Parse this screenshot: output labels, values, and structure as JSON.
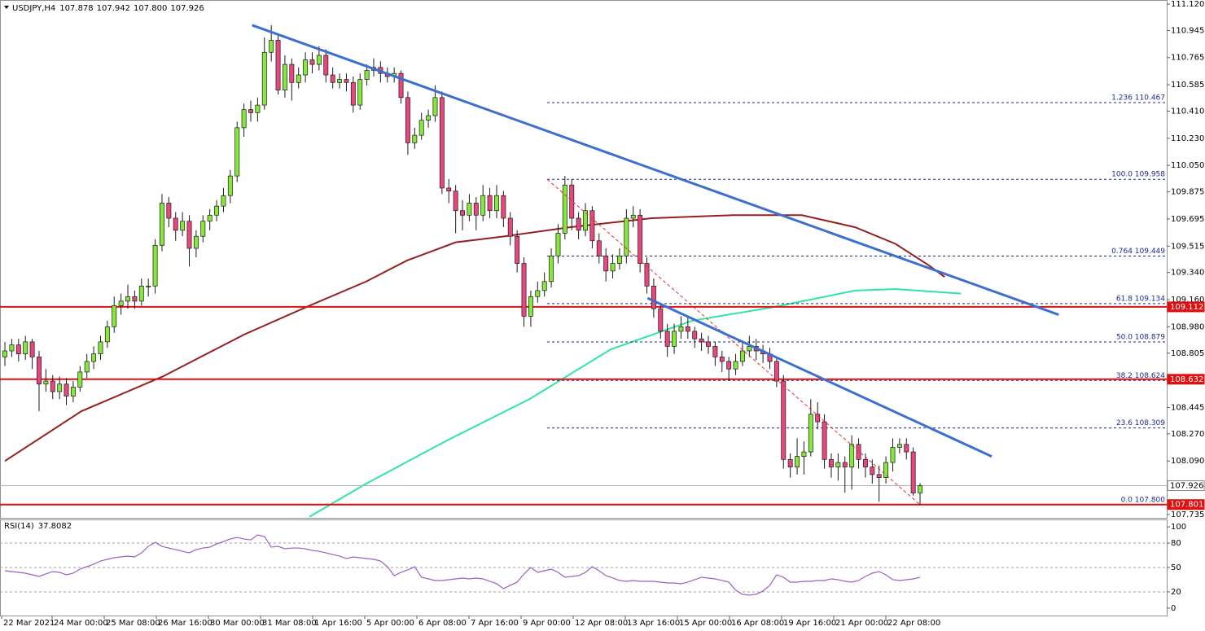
{
  "chart_data": {
    "type": "candlestick",
    "title": "USDJPY,H4",
    "title_values": [
      "107.878",
      "107.942",
      "107.800",
      "107.926"
    ],
    "xlim": [
      -0.72,
      170.12
    ],
    "ylim": [
      107.713,
      111.147
    ],
    "yticks": [
      {
        "value": 111.12,
        "label": "111.120"
      },
      110.945,
      110.765,
      110.585,
      {
        "value": 110.41,
        "label": "110.410"
      },
      {
        "value": 110.23,
        "label": "110.230"
      },
      {
        "value": 110.05,
        "label": "110.050"
      },
      109.875,
      109.695,
      109.515,
      {
        "value": 109.34,
        "label": "109.340"
      },
      {
        "value": 109.16,
        "label": "109.160"
      },
      {
        "value": 108.98,
        "label": "108.980"
      },
      108.805,
      108.625,
      108.445,
      {
        "value": 108.27,
        "label": "108.270"
      },
      {
        "value": 108.09,
        "label": "108.090"
      },
      {
        "value": 107.91,
        "label": "107.910"
      },
      107.735
    ],
    "x_labels": [
      "22 Mar 2021",
      "24 Mar 00:00",
      "25 Mar 08:00",
      "26 Mar 16:00",
      "30 Mar 00:00",
      "31 Mar 08:00",
      "1 Apr 16:00",
      "5 Apr 00:00",
      "6 Apr 08:00",
      "7 Apr 16:00",
      "9 Apr 00:00",
      "12 Apr 08:00",
      "13 Apr 16:00",
      "15 Apr 00:00",
      "16 Apr 08:00",
      "19 Apr 16:00",
      "21 Apr 00:00",
      "22 Apr 08:00"
    ],
    "bull_color": "#86e83a",
    "bear_color": "#e8467c",
    "ohlc": [
      [
        108.78,
        108.88,
        108.72,
        108.82
      ],
      [
        108.82,
        108.9,
        108.78,
        108.86
      ],
      [
        108.86,
        108.9,
        108.75,
        108.8
      ],
      [
        108.8,
        108.92,
        108.76,
        108.88
      ],
      [
        108.88,
        108.9,
        108.7,
        108.78
      ],
      [
        108.78,
        108.82,
        108.42,
        108.6
      ],
      [
        108.6,
        108.7,
        108.55,
        108.62
      ],
      [
        108.62,
        108.66,
        108.5,
        108.55
      ],
      [
        108.55,
        108.65,
        108.5,
        108.6
      ],
      [
        108.6,
        108.64,
        108.46,
        108.52
      ],
      [
        108.52,
        108.62,
        108.48,
        108.58
      ],
      [
        108.58,
        108.72,
        108.55,
        108.68
      ],
      [
        108.68,
        108.8,
        108.64,
        108.75
      ],
      [
        108.75,
        108.85,
        108.7,
        108.8
      ],
      [
        108.8,
        108.92,
        108.76,
        108.88
      ],
      [
        108.88,
        109.02,
        108.84,
        108.98
      ],
      [
        108.98,
        109.18,
        108.94,
        109.12
      ],
      [
        109.12,
        109.2,
        109.06,
        109.15
      ],
      [
        109.15,
        109.26,
        109.1,
        109.18
      ],
      [
        109.18,
        109.22,
        109.1,
        109.15
      ],
      [
        109.15,
        109.3,
        109.12,
        109.25
      ],
      [
        109.25,
        109.3,
        109.18,
        109.25
      ],
      [
        109.25,
        109.56,
        109.2,
        109.52
      ],
      [
        109.52,
        109.86,
        109.48,
        109.8
      ],
      [
        109.8,
        109.84,
        109.64,
        109.7
      ],
      [
        109.7,
        109.74,
        109.55,
        109.62
      ],
      [
        109.62,
        109.74,
        109.58,
        109.68
      ],
      [
        109.68,
        109.72,
        109.38,
        109.5
      ],
      [
        109.5,
        109.62,
        109.44,
        109.58
      ],
      [
        109.58,
        109.72,
        109.54,
        109.68
      ],
      [
        109.68,
        109.76,
        109.62,
        109.72
      ],
      [
        109.72,
        109.82,
        109.68,
        109.78
      ],
      [
        109.78,
        109.9,
        109.74,
        109.85
      ],
      [
        109.85,
        110.02,
        109.8,
        109.98
      ],
      [
        109.98,
        110.34,
        109.94,
        110.3
      ],
      [
        110.3,
        110.46,
        110.24,
        110.42
      ],
      [
        110.42,
        110.48,
        110.34,
        110.4
      ],
      [
        110.4,
        110.5,
        110.34,
        110.45
      ],
      [
        110.45,
        110.9,
        110.42,
        110.8
      ],
      [
        110.8,
        110.98,
        110.74,
        110.88
      ],
      [
        110.88,
        110.92,
        110.52,
        110.55
      ],
      [
        110.55,
        110.78,
        110.5,
        110.72
      ],
      [
        110.72,
        110.76,
        110.48,
        110.6
      ],
      [
        110.6,
        110.7,
        110.56,
        110.65
      ],
      [
        110.65,
        110.8,
        110.6,
        110.75
      ],
      [
        110.75,
        110.8,
        110.66,
        110.72
      ],
      [
        110.72,
        110.84,
        110.68,
        110.78
      ],
      [
        110.78,
        110.82,
        110.6,
        110.65
      ],
      [
        110.65,
        110.7,
        110.56,
        110.6
      ],
      [
        110.6,
        110.66,
        110.56,
        110.62
      ],
      [
        110.62,
        110.66,
        110.54,
        110.6
      ],
      [
        110.6,
        110.64,
        110.4,
        110.45
      ],
      [
        110.45,
        110.66,
        110.42,
        110.62
      ],
      [
        110.62,
        110.72,
        110.58,
        110.68
      ],
      [
        110.68,
        110.76,
        110.64,
        110.7
      ],
      [
        110.7,
        110.74,
        110.6,
        110.66
      ],
      [
        110.66,
        110.7,
        110.6,
        110.64
      ],
      [
        110.64,
        110.7,
        110.6,
        110.66
      ],
      [
        110.66,
        110.68,
        110.46,
        110.5
      ],
      [
        110.5,
        110.54,
        110.12,
        110.2
      ],
      [
        110.2,
        110.3,
        110.16,
        110.25
      ],
      [
        110.25,
        110.4,
        110.22,
        110.35
      ],
      [
        110.35,
        110.42,
        110.3,
        110.38
      ],
      [
        110.38,
        110.58,
        110.34,
        110.5
      ],
      [
        110.5,
        110.54,
        109.86,
        109.9
      ],
      [
        109.9,
        109.96,
        109.8,
        109.88
      ],
      [
        109.88,
        109.92,
        109.6,
        109.75
      ],
      [
        109.75,
        109.82,
        109.62,
        109.72
      ],
      [
        109.72,
        109.86,
        109.68,
        109.8
      ],
      [
        109.8,
        109.84,
        109.62,
        109.72
      ],
      [
        109.72,
        109.92,
        109.68,
        109.85
      ],
      [
        109.85,
        109.9,
        109.7,
        109.75
      ],
      [
        109.75,
        109.92,
        109.7,
        109.85
      ],
      [
        109.85,
        109.88,
        109.64,
        109.7
      ],
      [
        109.7,
        109.74,
        109.52,
        109.58
      ],
      [
        109.58,
        109.62,
        109.34,
        109.4
      ],
      [
        109.4,
        109.44,
        108.98,
        109.05
      ],
      [
        109.05,
        109.22,
        108.98,
        109.18
      ],
      [
        109.18,
        109.28,
        109.14,
        109.22
      ],
      [
        109.22,
        109.34,
        109.18,
        109.28
      ],
      [
        109.28,
        109.5,
        109.24,
        109.45
      ],
      [
        109.45,
        109.66,
        109.4,
        109.6
      ],
      [
        109.6,
        109.98,
        109.56,
        109.92
      ],
      [
        109.92,
        109.96,
        109.62,
        109.7
      ],
      [
        109.7,
        109.74,
        109.56,
        109.62
      ],
      [
        109.62,
        109.8,
        109.58,
        109.75
      ],
      [
        109.75,
        109.78,
        109.5,
        109.55
      ],
      [
        109.55,
        109.6,
        109.4,
        109.45
      ],
      [
        109.45,
        109.5,
        109.28,
        109.35
      ],
      [
        109.35,
        109.46,
        109.3,
        109.4
      ],
      [
        109.4,
        109.5,
        109.36,
        109.45
      ],
      [
        109.45,
        109.76,
        109.4,
        109.7
      ],
      [
        109.7,
        109.78,
        109.64,
        109.72
      ],
      [
        109.72,
        109.76,
        109.34,
        109.4
      ],
      [
        109.4,
        109.44,
        109.2,
        109.25
      ],
      [
        109.25,
        109.3,
        109.04,
        109.1
      ],
      [
        109.1,
        109.14,
        108.9,
        108.95
      ],
      [
        108.95,
        109.0,
        108.78,
        108.85
      ],
      [
        108.85,
        109.0,
        108.8,
        108.95
      ],
      [
        108.95,
        109.05,
        108.9,
        108.98
      ],
      [
        108.98,
        109.04,
        108.9,
        108.95
      ],
      [
        108.95,
        108.98,
        108.84,
        108.9
      ],
      [
        108.9,
        108.94,
        108.82,
        108.88
      ],
      [
        108.88,
        108.92,
        108.8,
        108.85
      ],
      [
        108.85,
        108.88,
        108.72,
        108.78
      ],
      [
        108.78,
        108.82,
        108.68,
        108.75
      ],
      [
        108.75,
        108.78,
        108.62,
        108.7
      ],
      [
        108.7,
        108.8,
        108.66,
        108.75
      ],
      [
        108.75,
        108.88,
        108.72,
        108.82
      ],
      [
        108.82,
        108.92,
        108.78,
        108.85
      ],
      [
        108.85,
        108.9,
        108.76,
        108.82
      ],
      [
        108.82,
        108.86,
        108.74,
        108.8
      ],
      [
        108.8,
        108.84,
        108.7,
        108.75
      ],
      [
        108.75,
        108.78,
        108.58,
        108.62
      ],
      [
        108.62,
        108.66,
        108.04,
        108.1
      ],
      [
        108.1,
        108.14,
        107.98,
        108.05
      ],
      [
        108.05,
        108.24,
        108.0,
        108.12
      ],
      [
        108.12,
        108.22,
        108.0,
        108.15
      ],
      [
        108.15,
        108.5,
        108.12,
        108.4
      ],
      [
        108.4,
        108.48,
        108.3,
        108.35
      ],
      [
        108.35,
        108.4,
        108.04,
        108.1
      ],
      [
        108.1,
        108.14,
        107.98,
        108.05
      ],
      [
        108.05,
        108.14,
        107.96,
        108.08
      ],
      [
        108.08,
        108.12,
        107.88,
        108.05
      ],
      [
        108.05,
        108.26,
        107.9,
        108.2
      ],
      [
        108.2,
        108.24,
        108.04,
        108.1
      ],
      [
        108.1,
        108.14,
        107.98,
        108.05
      ],
      [
        108.05,
        108.1,
        107.94,
        108.0
      ],
      [
        108.0,
        108.06,
        107.82,
        107.98
      ],
      [
        107.98,
        108.12,
        107.94,
        108.08
      ],
      [
        108.08,
        108.24,
        108.02,
        108.18
      ],
      [
        108.18,
        108.24,
        108.14,
        108.2
      ],
      [
        108.2,
        108.24,
        108.1,
        108.15
      ],
      [
        108.15,
        108.18,
        107.86,
        107.878
      ],
      [
        107.878,
        107.942,
        107.8,
        107.926
      ]
    ],
    "moving_averages": [
      {
        "color": "#962020",
        "x": [
          0,
          11.2,
          23.1,
          35.1,
          44.6,
          52.9,
          58.9,
          66.0,
          73.2,
          82.7,
          94.7,
          106.6,
          116.7,
          124.5,
          130.4,
          135.2,
          137.6
        ],
        "values": [
          108.09,
          108.42,
          108.65,
          108.93,
          109.12,
          109.28,
          109.42,
          109.54,
          109.58,
          109.64,
          109.7,
          109.72,
          109.72,
          109.64,
          109.53,
          109.39,
          109.31
        ]
      },
      {
        "color": "#2fe6a0",
        "x": [
          44.6,
          52.9,
          64.9,
          76.8,
          88.7,
          100.6,
          112.5,
          124.5,
          130.4,
          140.0
        ],
        "values": [
          107.72,
          107.94,
          108.23,
          108.5,
          108.83,
          109.02,
          109.11,
          109.22,
          109.23,
          109.2
        ]
      }
    ],
    "trendlines": [
      {
        "color": "#3d6fd1",
        "x": [
          36.2,
          154.3
        ],
        "values": [
          110.98,
          109.06
        ]
      },
      {
        "color": "#3d6fd1",
        "x": [
          94.1,
          144.5
        ],
        "values": [
          109.17,
          108.12
        ]
      }
    ],
    "fib_line": {
      "color": "#e03030",
      "x": [
        79.4,
        134
      ],
      "values": [
        109.958,
        107.8
      ]
    },
    "fib_levels": [
      {
        "value": 110.467,
        "label": "1.236 110.467"
      },
      {
        "value": 109.958,
        "label": "100.0 109.958"
      },
      {
        "value": 109.449,
        "label": "0.764 109.449"
      },
      {
        "value": 109.134,
        "label": "61.8 109.134"
      },
      {
        "value": 108.879,
        "label": "50.0 108.879"
      },
      {
        "value": 108.624,
        "label": "38.2 108.624"
      },
      {
        "value": 108.309,
        "label": "23.6 108.309"
      },
      {
        "value": 107.8,
        "label": "0.0 107.800"
      }
    ],
    "levels": [
      {
        "value": 109.112,
        "color": "#e01010"
      },
      {
        "value": 108.632,
        "color": "#e01010"
      },
      {
        "value": 107.801,
        "color": "#e01010"
      }
    ],
    "price_line": {
      "value": 107.926,
      "color": "#b0b0b0"
    },
    "rsi": {
      "title": "RSI(14)",
      "color": "#9a5fc0",
      "ylim": [
        -9.1,
        109.1
      ],
      "yticks": [
        0,
        20,
        50,
        80,
        100
      ],
      "levels": [
        20,
        50,
        80
      ],
      "values": [
        46,
        45,
        44,
        43,
        41,
        39,
        42,
        45,
        44,
        41,
        43,
        48,
        51,
        54,
        58,
        60,
        62,
        63,
        64,
        63,
        68,
        76,
        81,
        76,
        74,
        72,
        70,
        68,
        72,
        74,
        75,
        79,
        82,
        85,
        87,
        85,
        84,
        90,
        88,
        75,
        76,
        73,
        74,
        74,
        73,
        71,
        70,
        68,
        66,
        64,
        61,
        63,
        62,
        61,
        60,
        58,
        51,
        40,
        44,
        47,
        51,
        38,
        36,
        34,
        34,
        35,
        36,
        37,
        36,
        37,
        36,
        33,
        30,
        24,
        28,
        32,
        42,
        50,
        44,
        46,
        48,
        44,
        38,
        39,
        40,
        44,
        51,
        46,
        40,
        37,
        34,
        33,
        34,
        33,
        33,
        33,
        32,
        31,
        31,
        30,
        32,
        35,
        38,
        37,
        36,
        34,
        32,
        22,
        17,
        16,
        17,
        21,
        28,
        41,
        38,
        32,
        32,
        33,
        33,
        34,
        34,
        36,
        35,
        33,
        32,
        34,
        39,
        43,
        45,
        41,
        35,
        34,
        35,
        36,
        37.8082
      ]
    }
  }
}
